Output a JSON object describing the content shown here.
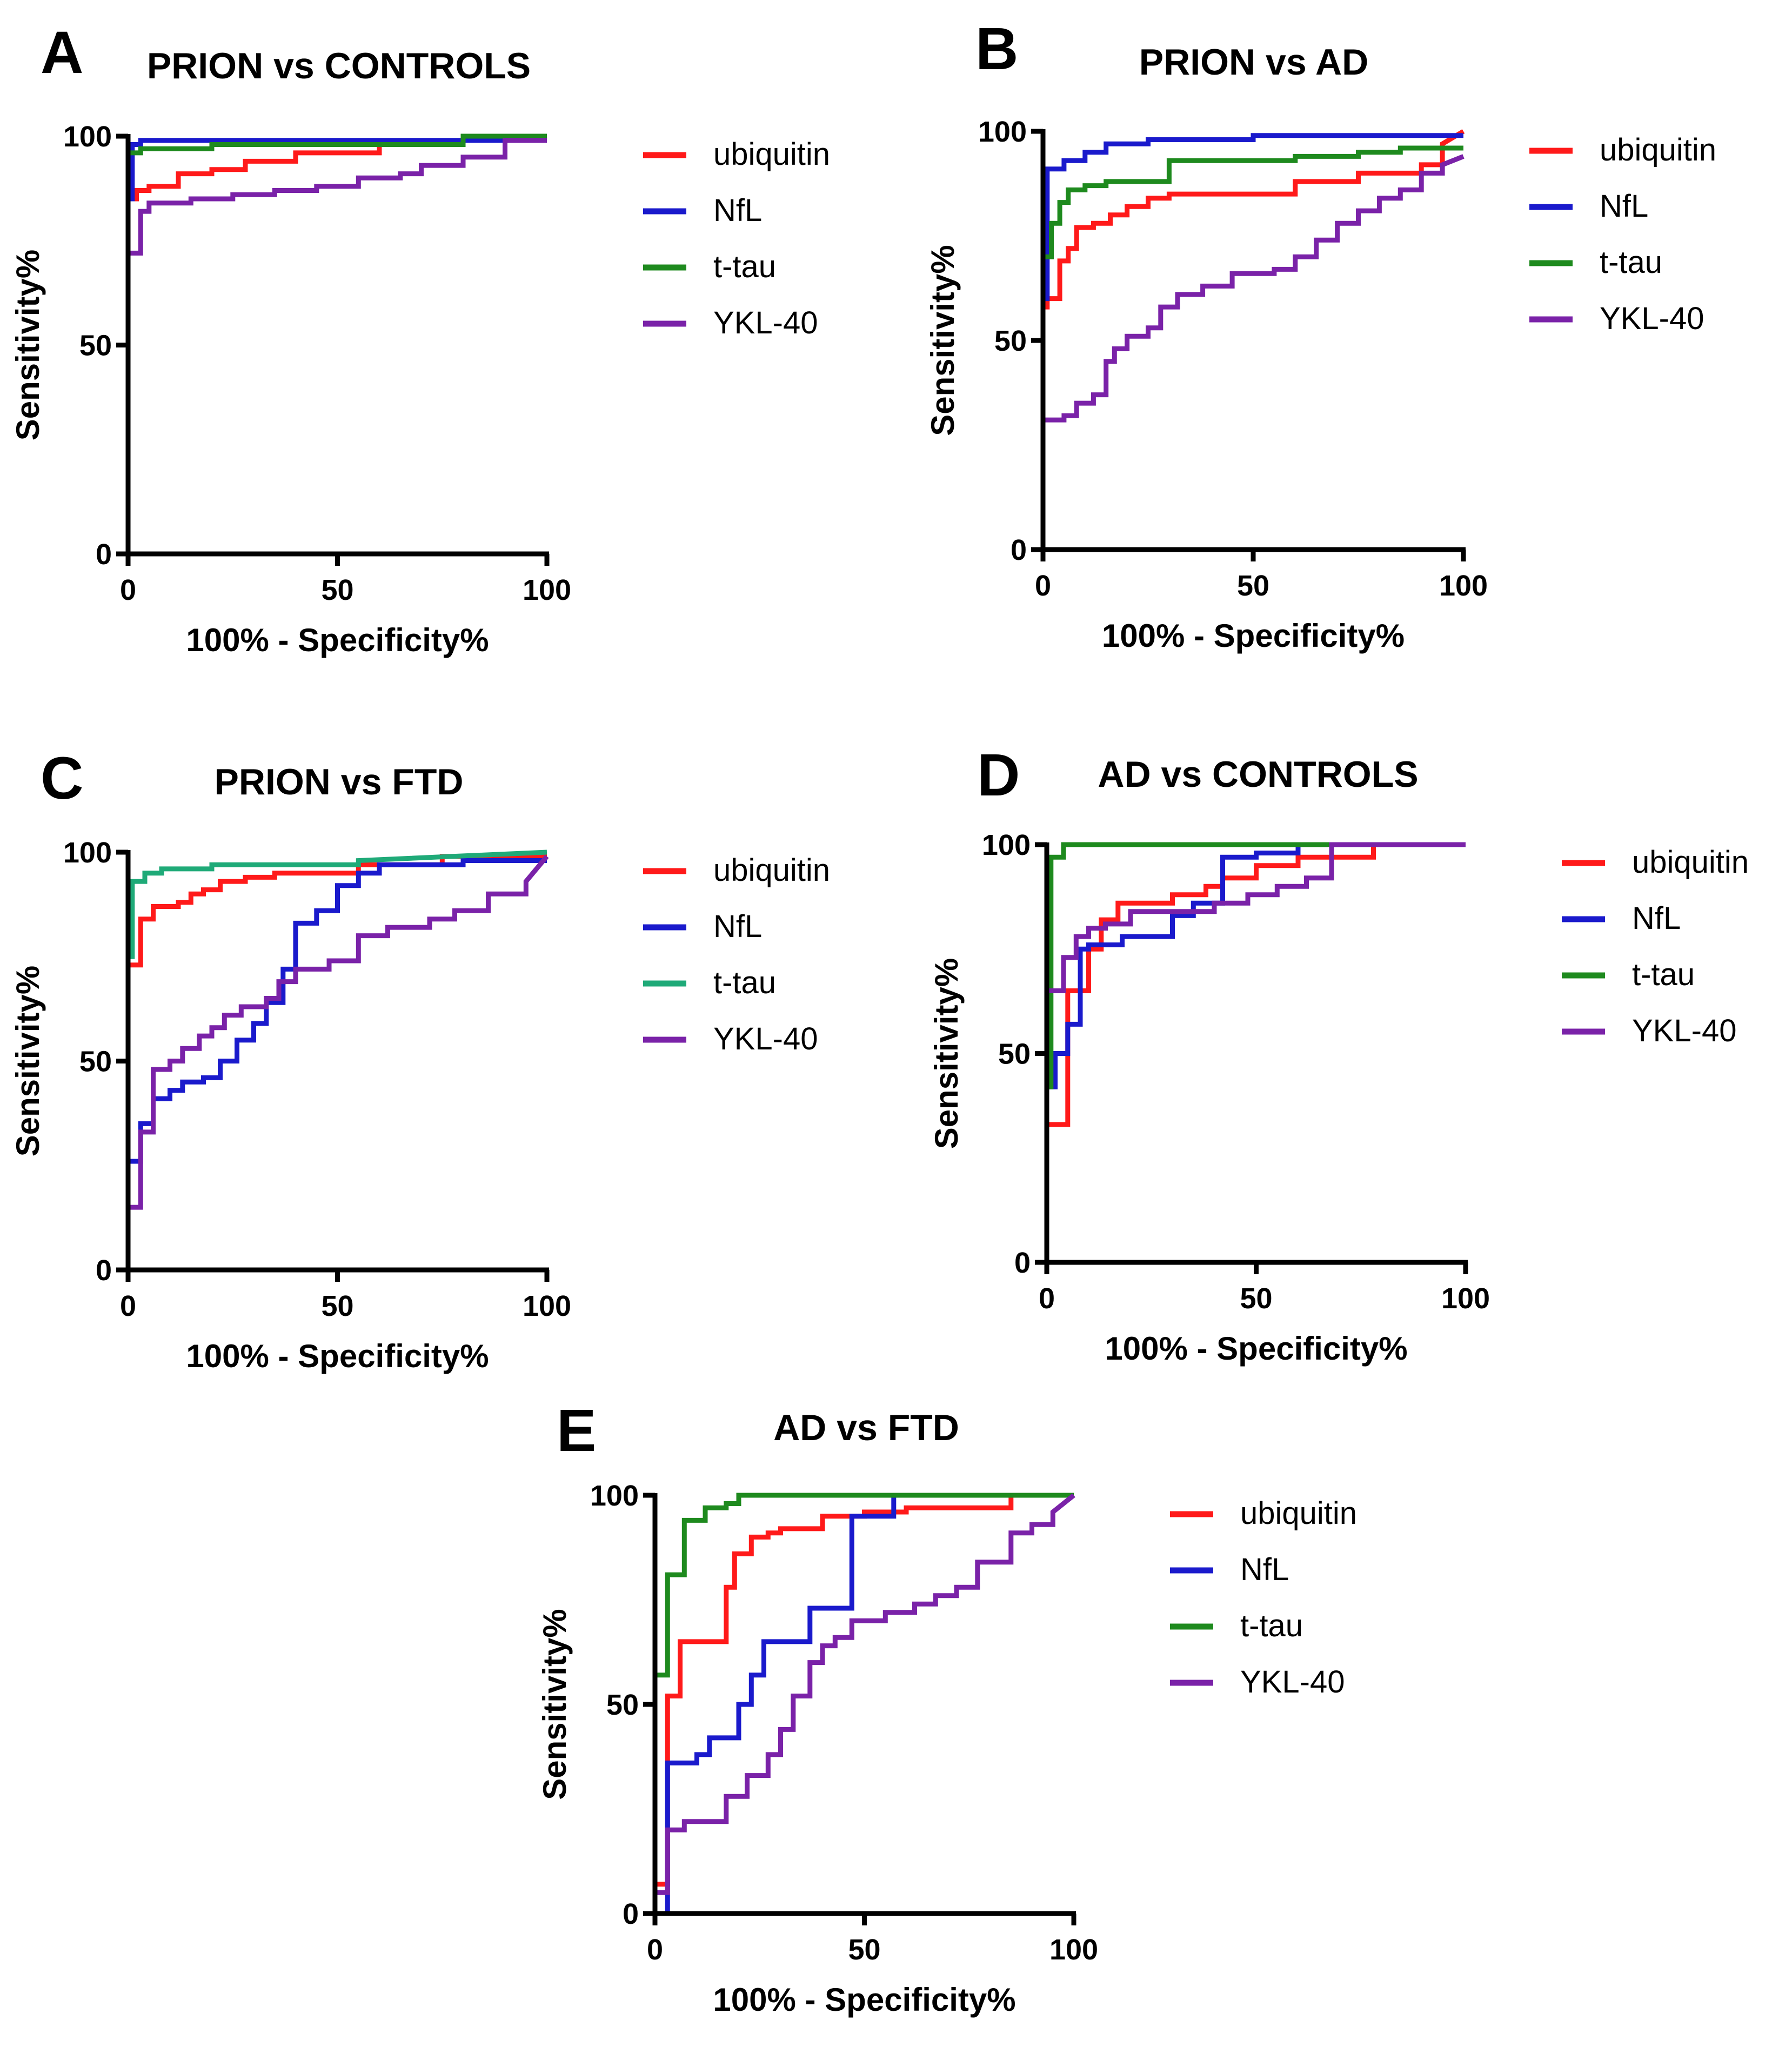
{
  "chart_data": [
    {
      "type": "line",
      "panel": "A",
      "title": "PRION vs CONTROLS",
      "xlabel": "100% - Specificity%",
      "ylabel": "Sensitivity%",
      "xlim": [
        0,
        100
      ],
      "ylim": [
        0,
        100
      ],
      "xticks": [
        "0",
        "50",
        "100"
      ],
      "yticks": [
        "0",
        "50",
        "100"
      ],
      "legend": "right",
      "series": [
        {
          "name": "ubiquitin",
          "color": "#ff1a1a",
          "x": [
            0,
            0,
            2,
            2,
            5,
            5,
            12,
            12,
            20,
            20,
            28,
            28,
            40,
            40,
            60,
            60,
            100
          ],
          "y": [
            0,
            85,
            85,
            87,
            87,
            88,
            88,
            91,
            91,
            92,
            92,
            94,
            94,
            96,
            96,
            98,
            100
          ]
        },
        {
          "name": "NfL",
          "color": "#1a1acc",
          "x": [
            0,
            0,
            1,
            1,
            3,
            3,
            100
          ],
          "y": [
            0,
            85,
            85,
            98,
            98,
            99,
            99
          ]
        },
        {
          "name": "t-tau",
          "color": "#1e8a1e",
          "x": [
            0,
            0,
            3,
            3,
            20,
            20,
            80,
            80,
            100
          ],
          "y": [
            0,
            96,
            96,
            97,
            97,
            98,
            98,
            100,
            100
          ]
        },
        {
          "name": "YKL-40",
          "color": "#7a22a8",
          "x": [
            0,
            0,
            3,
            3,
            5,
            5,
            15,
            15,
            25,
            25,
            35,
            35,
            45,
            45,
            55,
            55,
            65,
            65,
            70,
            70,
            80,
            80,
            90,
            90,
            100
          ],
          "y": [
            0,
            72,
            72,
            82,
            82,
            84,
            84,
            85,
            85,
            86,
            86,
            87,
            87,
            88,
            88,
            90,
            90,
            91,
            91,
            93,
            93,
            95,
            95,
            99,
            99
          ]
        }
      ]
    },
    {
      "type": "line",
      "panel": "B",
      "title": "PRION vs AD",
      "xlabel": "100% - Specificity%",
      "ylabel": "Sensitivity%",
      "xlim": [
        0,
        100
      ],
      "ylim": [
        0,
        100
      ],
      "xticks": [
        "0",
        "50",
        "100"
      ],
      "yticks": [
        "0",
        "50",
        "100"
      ],
      "legend": "right",
      "series": [
        {
          "name": "ubiquitin",
          "color": "#ff1a1a",
          "x": [
            0,
            0,
            1,
            1,
            4,
            4,
            6,
            6,
            8,
            8,
            12,
            12,
            16,
            16,
            20,
            20,
            25,
            25,
            30,
            30,
            40,
            40,
            50,
            50,
            60,
            60,
            75,
            75,
            90,
            90,
            95,
            95,
            100
          ],
          "y": [
            0,
            58,
            58,
            60,
            60,
            69,
            69,
            72,
            72,
            77,
            77,
            78,
            78,
            80,
            80,
            82,
            82,
            84,
            84,
            85,
            85,
            85,
            85,
            85,
            85,
            88,
            88,
            90,
            90,
            92,
            92,
            97,
            100
          ]
        },
        {
          "name": "NfL",
          "color": "#1a1acc",
          "x": [
            0,
            0,
            1,
            1,
            5,
            5,
            10,
            10,
            15,
            15,
            25,
            25,
            50,
            50,
            100
          ],
          "y": [
            0,
            60,
            60,
            91,
            91,
            93,
            93,
            95,
            95,
            97,
            97,
            98,
            98,
            99,
            99
          ]
        },
        {
          "name": "t-tau",
          "color": "#1e8a1e",
          "x": [
            0,
            0,
            2,
            2,
            4,
            4,
            6,
            6,
            10,
            10,
            15,
            15,
            30,
            30,
            45,
            45,
            60,
            60,
            75,
            75,
            85,
            85,
            100
          ],
          "y": [
            0,
            70,
            70,
            78,
            78,
            83,
            83,
            86,
            86,
            87,
            87,
            88,
            88,
            93,
            93,
            93,
            93,
            94,
            94,
            95,
            95,
            96,
            96
          ]
        },
        {
          "name": "YKL-40",
          "color": "#7a22a8",
          "x": [
            0,
            0,
            5,
            5,
            8,
            8,
            12,
            12,
            15,
            15,
            17,
            17,
            20,
            20,
            25,
            25,
            28,
            28,
            32,
            32,
            38,
            38,
            45,
            45,
            55,
            55,
            60,
            60,
            65,
            65,
            70,
            70,
            75,
            75,
            80,
            80,
            85,
            85,
            90,
            90,
            95,
            95,
            100
          ],
          "y": [
            0,
            31,
            31,
            32,
            32,
            35,
            35,
            37,
            37,
            45,
            45,
            48,
            48,
            51,
            51,
            53,
            53,
            58,
            58,
            61,
            61,
            63,
            63,
            66,
            66,
            67,
            67,
            70,
            70,
            74,
            74,
            78,
            78,
            81,
            81,
            84,
            84,
            86,
            86,
            90,
            90,
            92,
            94
          ]
        }
      ]
    },
    {
      "type": "line",
      "panel": "C",
      "title": "PRION vs FTD",
      "xlabel": "100% - Specificity%",
      "ylabel": "Sensitivity%",
      "xlim": [
        0,
        100
      ],
      "ylim": [
        0,
        100
      ],
      "xticks": [
        "0",
        "50",
        "100"
      ],
      "yticks": [
        "0",
        "50",
        "100"
      ],
      "legend": "right",
      "series": [
        {
          "name": "ubiquitin",
          "color": "#ff1a1a",
          "x": [
            0,
            0,
            3,
            3,
            6,
            6,
            12,
            12,
            15,
            15,
            18,
            18,
            22,
            22,
            28,
            28,
            35,
            35,
            55,
            55,
            75,
            75,
            100
          ],
          "y": [
            0,
            73,
            73,
            84,
            84,
            87,
            87,
            88,
            88,
            90,
            90,
            91,
            91,
            93,
            93,
            94,
            94,
            95,
            95,
            97,
            97,
            99,
            99
          ]
        },
        {
          "name": "NfL",
          "color": "#1a1acc",
          "x": [
            0,
            0,
            3,
            3,
            6,
            6,
            10,
            10,
            13,
            13,
            18,
            18,
            22,
            22,
            26,
            26,
            30,
            30,
            33,
            33,
            37,
            37,
            40,
            40,
            45,
            45,
            50,
            50,
            55,
            55,
            60,
            60,
            80,
            80,
            100
          ],
          "y": [
            0,
            26,
            26,
            35,
            35,
            41,
            41,
            43,
            43,
            45,
            45,
            46,
            46,
            50,
            50,
            55,
            55,
            59,
            59,
            64,
            64,
            72,
            72,
            83,
            83,
            86,
            86,
            92,
            92,
            95,
            95,
            97,
            97,
            98,
            98
          ]
        },
        {
          "name": "t-tau",
          "color": "#1faa78",
          "x": [
            0,
            0,
            1,
            1,
            4,
            4,
            8,
            8,
            20,
            20,
            55,
            55,
            100
          ],
          "y": [
            0,
            75,
            75,
            93,
            93,
            95,
            95,
            96,
            96,
            97,
            97,
            98,
            100
          ]
        },
        {
          "name": "YKL-40",
          "color": "#7a22a8",
          "x": [
            0,
            0,
            3,
            3,
            6,
            6,
            10,
            10,
            13,
            13,
            17,
            17,
            20,
            20,
            23,
            23,
            27,
            27,
            33,
            33,
            36,
            36,
            40,
            40,
            48,
            48,
            55,
            55,
            62,
            62,
            72,
            72,
            78,
            78,
            86,
            86,
            95,
            95,
            100
          ],
          "y": [
            0,
            15,
            15,
            33,
            33,
            48,
            48,
            50,
            50,
            53,
            53,
            56,
            56,
            58,
            58,
            61,
            61,
            63,
            63,
            65,
            65,
            69,
            69,
            72,
            72,
            74,
            74,
            80,
            80,
            82,
            82,
            84,
            84,
            86,
            86,
            90,
            90,
            93,
            99
          ]
        }
      ]
    },
    {
      "type": "line",
      "panel": "D",
      "title": "AD vs CONTROLS",
      "xlabel": "100% - Specificity%",
      "ylabel": "Sensitivity%",
      "xlim": [
        0,
        100
      ],
      "ylim": [
        0,
        100
      ],
      "xticks": [
        "0",
        "50",
        "100"
      ],
      "yticks": [
        "0",
        "50",
        "100"
      ],
      "legend": "right",
      "series": [
        {
          "name": "ubiquitin",
          "color": "#ff1a1a",
          "x": [
            0,
            0,
            5,
            5,
            10,
            10,
            13,
            13,
            17,
            17,
            30,
            30,
            38,
            38,
            42,
            42,
            50,
            50,
            60,
            60,
            78,
            78,
            100
          ],
          "y": [
            0,
            33,
            33,
            65,
            65,
            75,
            75,
            82,
            82,
            86,
            86,
            88,
            88,
            90,
            90,
            92,
            92,
            95,
            95,
            97,
            97,
            100,
            100
          ]
        },
        {
          "name": "NfL",
          "color": "#1a1acc",
          "x": [
            0,
            0,
            2,
            2,
            5,
            5,
            8,
            8,
            10,
            10,
            18,
            18,
            30,
            30,
            35,
            35,
            42,
            42,
            50,
            50,
            60,
            60,
            80,
            80,
            100
          ],
          "y": [
            0,
            42,
            42,
            50,
            50,
            57,
            57,
            75,
            75,
            76,
            76,
            78,
            78,
            83,
            83,
            86,
            86,
            97,
            97,
            98,
            98,
            100,
            100,
            100,
            100
          ]
        },
        {
          "name": "t-tau",
          "color": "#1e8a1e",
          "x": [
            0,
            0,
            1,
            1,
            4,
            4,
            100
          ],
          "y": [
            0,
            42,
            42,
            97,
            97,
            100,
            100
          ]
        },
        {
          "name": "YKL-40",
          "color": "#7a22a8",
          "x": [
            0,
            0,
            4,
            4,
            7,
            7,
            10,
            10,
            14,
            14,
            20,
            20,
            30,
            30,
            40,
            40,
            48,
            48,
            55,
            55,
            62,
            62,
            68,
            68,
            100
          ],
          "y": [
            0,
            65,
            65,
            73,
            73,
            78,
            78,
            80,
            80,
            81,
            81,
            84,
            84,
            84,
            84,
            86,
            86,
            88,
            88,
            90,
            90,
            92,
            92,
            100,
            100
          ]
        }
      ]
    },
    {
      "type": "line",
      "panel": "E",
      "title": "AD vs FTD",
      "xlabel": "100% - Specificity%",
      "ylabel": "Sensitivity%",
      "xlim": [
        0,
        100
      ],
      "ylim": [
        0,
        100
      ],
      "xticks": [
        "0",
        "50",
        "100"
      ],
      "yticks": [
        "0",
        "50",
        "100"
      ],
      "legend": "right",
      "series": [
        {
          "name": "ubiquitin",
          "color": "#ff1a1a",
          "x": [
            0,
            0,
            3,
            3,
            6,
            6,
            15,
            15,
            17,
            17,
            19,
            19,
            23,
            23,
            27,
            27,
            30,
            30,
            40,
            40,
            50,
            50,
            60,
            60,
            85,
            85,
            100
          ],
          "y": [
            0,
            7,
            7,
            52,
            52,
            65,
            65,
            65,
            65,
            78,
            78,
            86,
            86,
            90,
            90,
            91,
            91,
            92,
            92,
            95,
            95,
            96,
            96,
            97,
            97,
            100,
            100
          ]
        },
        {
          "name": "NfL",
          "color": "#1a1acc",
          "x": [
            0,
            0,
            3,
            3,
            10,
            10,
            13,
            13,
            20,
            20,
            23,
            23,
            26,
            26,
            37,
            37,
            47,
            47,
            57,
            57,
            100
          ],
          "y": [
            0,
            0,
            0,
            36,
            36,
            38,
            38,
            42,
            42,
            50,
            50,
            57,
            57,
            65,
            65,
            73,
            73,
            95,
            95,
            100,
            100
          ]
        },
        {
          "name": "t-tau",
          "color": "#1e8a1e",
          "x": [
            0,
            0,
            3,
            3,
            7,
            7,
            12,
            12,
            17,
            17,
            20,
            20,
            100
          ],
          "y": [
            0,
            57,
            57,
            81,
            81,
            94,
            94,
            97,
            97,
            98,
            98,
            100,
            100
          ]
        },
        {
          "name": "YKL-40",
          "color": "#7a22a8",
          "x": [
            0,
            0,
            3,
            3,
            7,
            7,
            17,
            17,
            22,
            22,
            27,
            27,
            30,
            30,
            33,
            33,
            37,
            37,
            40,
            40,
            43,
            43,
            47,
            47,
            55,
            55,
            62,
            62,
            67,
            67,
            72,
            72,
            77,
            77,
            85,
            85,
            90,
            90,
            95,
            95,
            100
          ],
          "y": [
            0,
            5,
            5,
            20,
            20,
            22,
            22,
            28,
            28,
            33,
            33,
            38,
            38,
            44,
            44,
            52,
            52,
            60,
            60,
            64,
            64,
            66,
            66,
            70,
            70,
            72,
            72,
            74,
            74,
            76,
            76,
            78,
            78,
            84,
            84,
            91,
            91,
            93,
            93,
            96,
            100
          ]
        }
      ]
    }
  ]
}
